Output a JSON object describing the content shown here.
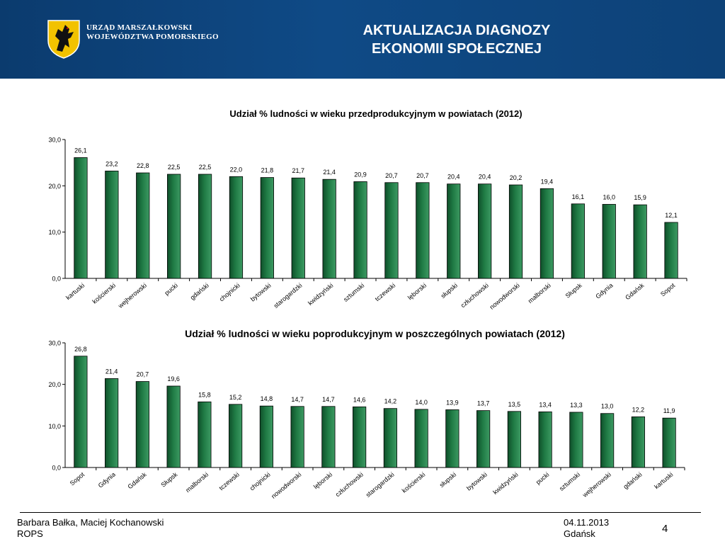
{
  "header": {
    "org_line1": "URZĄD MARSZAŁKOWSKI",
    "org_line2": "WOJEWÓDZTWA POMORSKIEGO",
    "title_line1": "AKTUALIZACJA DIAGNOZY",
    "title_line2": "EKONOMII SPOŁECZNEJ",
    "logo_icon": "griffin-shield-icon",
    "bg_color": "#0f4a86",
    "shield_color": "#f2c200"
  },
  "chart_data": [
    {
      "type": "bar",
      "title": "Udział % ludności w wieku przedprodukcyjnym w powiatach (2012)",
      "categories": [
        "kartuski",
        "kościerski",
        "wejherowski",
        "pucki",
        "gdański",
        "chojnicki",
        "bytowski",
        "starogardzki",
        "kwidzyński",
        "sztumski",
        "tczewski",
        "lęborski",
        "słupski",
        "człuchowski",
        "nowodworski",
        "malborski",
        "Słupsk",
        "Gdynia",
        "Gdańsk",
        "Sopot"
      ],
      "values": [
        26.1,
        23.2,
        22.8,
        22.5,
        22.5,
        22.0,
        21.8,
        21.7,
        21.4,
        20.9,
        20.7,
        20.7,
        20.4,
        20.4,
        20.2,
        19.4,
        16.1,
        16.0,
        15.9,
        12.1
      ],
      "data_labels": [
        "26,1",
        "23,2",
        "22,8",
        "22,5",
        "22,5",
        "22,0",
        "21,8",
        "21,7",
        "21,4",
        "20,9",
        "20,7",
        "20,7",
        "20,4",
        "20,4",
        "20,2",
        "19,4",
        "16,1",
        "16,0",
        "15,9",
        "12,1"
      ],
      "yticks": [
        0,
        10,
        20,
        30
      ],
      "ytick_labels": [
        "0,0",
        "10,0",
        "20,0",
        "30,0"
      ],
      "ylim": [
        0,
        30
      ],
      "bar_color": "#1f7a44",
      "grid": false,
      "legend": "none"
    },
    {
      "type": "bar",
      "title": "Udział % ludności w wieku poprodukcyjnym w poszczególnych powiatach (2012)",
      "categories": [
        "Sopot",
        "Gdynia",
        "Gdańsk",
        "Słupsk",
        "malborski",
        "tczewski",
        "chojnicki",
        "nowodworski",
        "lęborski",
        "człuchowski",
        "starogardzki",
        "kościerski",
        "słupski",
        "bytowski",
        "kwidzyński",
        "pucki",
        "sztumski",
        "wejherowski",
        "gdański",
        "kartuski"
      ],
      "values": [
        26.8,
        21.4,
        20.7,
        19.6,
        15.8,
        15.2,
        14.8,
        14.7,
        14.7,
        14.6,
        14.2,
        14.0,
        13.9,
        13.7,
        13.5,
        13.4,
        13.3,
        13.0,
        12.2,
        11.9
      ],
      "data_labels": [
        "26,8",
        "21,4",
        "20,7",
        "19,6",
        "15,8",
        "15,2",
        "14,8",
        "14,7",
        "14,7",
        "14,6",
        "14,2",
        "14,0",
        "13,9",
        "13,7",
        "13,5",
        "13,4",
        "13,3",
        "13,0",
        "12,2",
        "11,9"
      ],
      "yticks": [
        0,
        10,
        20,
        30
      ],
      "ytick_labels": [
        "0,0",
        "10,0",
        "20,0",
        "30,0"
      ],
      "ylim": [
        0,
        30
      ],
      "bar_color": "#1f7a44",
      "grid": false,
      "legend": "none"
    }
  ],
  "footer": {
    "authors": "Barbara Bałka, Maciej Kochanowski",
    "org": "ROPS",
    "date": "04.11.2013",
    "city": "Gdańsk",
    "page_number": "4"
  }
}
